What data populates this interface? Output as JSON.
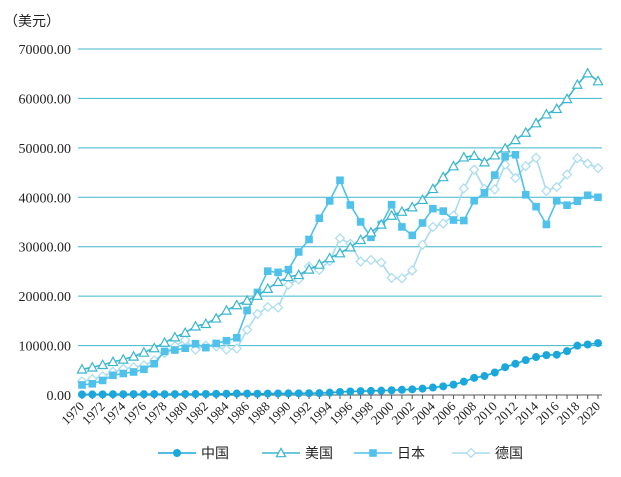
{
  "chart_data": {
    "type": "line",
    "unit_label": "（美元）",
    "xlabel": "",
    "ylabel": "",
    "ylim": [
      0,
      70000
    ],
    "ytick_values": [
      0,
      10000,
      20000,
      30000,
      40000,
      50000,
      60000,
      70000
    ],
    "ytick_labels": [
      "0.00",
      "10000.00",
      "20000.00",
      "30000.00",
      "40000.00",
      "50000.00",
      "60000.00",
      "70000.00"
    ],
    "grid": true,
    "legend_position": "bottom",
    "x": [
      1970,
      1971,
      1972,
      1973,
      1974,
      1975,
      1976,
      1977,
      1978,
      1979,
      1980,
      1981,
      1982,
      1983,
      1984,
      1985,
      1986,
      1987,
      1988,
      1989,
      1990,
      1991,
      1992,
      1993,
      1994,
      1995,
      1996,
      1997,
      1998,
      1999,
      2000,
      2001,
      2002,
      2003,
      2004,
      2005,
      2006,
      2007,
      2008,
      2009,
      2010,
      2011,
      2012,
      2013,
      2014,
      2015,
      2016,
      2017,
      2018,
      2019,
      2020
    ],
    "xtick_labels": [
      "1970",
      "1972",
      "1974",
      "1976",
      "1978",
      "1980",
      "1982",
      "1984",
      "1986",
      "1988",
      "1990",
      "1992",
      "1994",
      "1996",
      "1998",
      "2000",
      "2002",
      "2004",
      "2006",
      "2008",
      "2010",
      "2012",
      "2014",
      "2016",
      "2018",
      "2020"
    ],
    "series": [
      {
        "name": "中国",
        "color": "#1aa7dc",
        "marker": "circle",
        "values": [
          113,
          118,
          131,
          157,
          160,
          178,
          165,
          185,
          156,
          183,
          195,
          197,
          203,
          225,
          251,
          294,
          281,
          252,
          283,
          311,
          318,
          333,
          366,
          377,
          473,
          610,
          709,
          781,
          828,
          873,
          959,
          1053,
          1149,
          1289,
          1509,
          1753,
          2099,
          2694,
          3468,
          3832,
          4550,
          5618,
          6317,
          7051,
          7679,
          8067,
          8148,
          8879,
          9977,
          10217,
          10500
        ]
      },
      {
        "name": "美国",
        "color": "#3bb6cf",
        "marker": "triangle",
        "values": [
          5200,
          5600,
          6100,
          6700,
          7200,
          7800,
          8600,
          9500,
          10600,
          11700,
          12600,
          13900,
          14400,
          15500,
          17100,
          18200,
          19100,
          20100,
          21500,
          22900,
          23900,
          24300,
          25400,
          26400,
          27700,
          28700,
          29900,
          31400,
          32900,
          34500,
          36300,
          37100,
          38000,
          39500,
          41700,
          44100,
          46300,
          48100,
          48400,
          47100,
          48500,
          49900,
          51600,
          53100,
          55000,
          56800,
          57900,
          59900,
          62800,
          65100,
          63500
        ]
      },
      {
        "name": "日本",
        "color": "#4fc1ea",
        "marker": "square",
        "values": [
          2040,
          2270,
          2950,
          3990,
          4350,
          4660,
          5200,
          6330,
          8820,
          9100,
          9460,
          10360,
          9580,
          10430,
          10980,
          11580,
          17110,
          20750,
          25050,
          24810,
          25360,
          28930,
          31460,
          35760,
          39270,
          43440,
          38440,
          35020,
          31900,
          34500,
          38500,
          34000,
          32300,
          34800,
          37700,
          37200,
          35400,
          35300,
          39300,
          40900,
          44500,
          48200,
          48600,
          40500,
          38100,
          34500,
          39300,
          38400,
          39200,
          40400,
          40000
        ]
      },
      {
        "name": "德国",
        "color": "#a9dcf0",
        "marker": "diamond",
        "values": [
          2750,
          3200,
          3800,
          4700,
          5300,
          5600,
          6000,
          7000,
          8500,
          9900,
          11100,
          9200,
          10000,
          9800,
          9200,
          9400,
          13200,
          16400,
          17800,
          17700,
          22300,
          23400,
          26000,
          25300,
          27100,
          31700,
          30600,
          27000,
          27300,
          26800,
          23700,
          23600,
          25200,
          30400,
          34000,
          34700,
          36300,
          41800,
          45600,
          41700,
          41600,
          46600,
          43900,
          46300,
          48000,
          41300,
          42100,
          44600,
          47900,
          46800,
          45900
        ]
      }
    ]
  }
}
